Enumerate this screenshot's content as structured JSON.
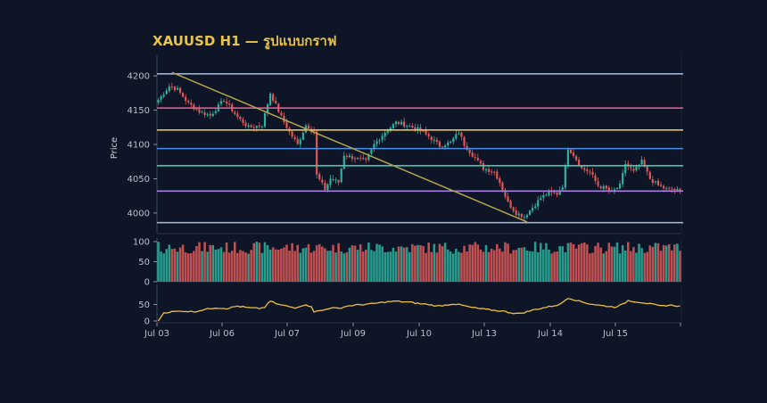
{
  "chart_data": {
    "type": "candlestick",
    "title": "XAUUSD H1 — รูปแบบกราฟ",
    "ylabel": "Price",
    "ylim": [
      3970,
      4230
    ],
    "yticks": [
      4000,
      4050,
      4100,
      4150,
      4200
    ],
    "x_ticks": [
      "Jul 03",
      "Jul 06",
      "Jul 07",
      "Jul 09",
      "Jul 10",
      "Jul 13",
      "Jul 14",
      "Jul 15"
    ],
    "grid": false,
    "colors": {
      "background": "#0d1526",
      "up": "#2bb5a0",
      "down": "#e05a5a",
      "title": "#e8c24a",
      "rsi_line": "#f0c040",
      "trendline": "#b5a550"
    },
    "price_path_knots": [
      [
        0,
        4165
      ],
      [
        4,
        4185
      ],
      [
        7,
        4180
      ],
      [
        11,
        4160
      ],
      [
        15,
        4148
      ],
      [
        19,
        4142
      ],
      [
        24,
        4165
      ],
      [
        29,
        4140
      ],
      [
        33,
        4125
      ],
      [
        38,
        4128
      ],
      [
        41,
        4175
      ],
      [
        45,
        4140
      ],
      [
        48,
        4118
      ],
      [
        51,
        4100
      ],
      [
        54,
        4128
      ],
      [
        57,
        4120
      ],
      [
        58,
        4055
      ],
      [
        61,
        4035
      ],
      [
        63,
        4050
      ],
      [
        66,
        4045
      ],
      [
        68,
        4085
      ],
      [
        72,
        4080
      ],
      [
        76,
        4075
      ],
      [
        79,
        4100
      ],
      [
        83,
        4118
      ],
      [
        87,
        4132
      ],
      [
        91,
        4128
      ],
      [
        95,
        4122
      ],
      [
        99,
        4112
      ],
      [
        103,
        4098
      ],
      [
        107,
        4103
      ],
      [
        110,
        4118
      ],
      [
        112,
        4100
      ],
      [
        116,
        4080
      ],
      [
        119,
        4065
      ],
      [
        123,
        4060
      ],
      [
        125,
        4045
      ],
      [
        128,
        4015
      ],
      [
        131,
        4000
      ],
      [
        134,
        3995
      ],
      [
        137,
        4008
      ],
      [
        140,
        4022
      ],
      [
        143,
        4030
      ],
      [
        146,
        4028
      ],
      [
        148,
        4040
      ],
      [
        150,
        4095
      ],
      [
        152,
        4085
      ],
      [
        155,
        4065
      ],
      [
        158,
        4060
      ],
      [
        161,
        4040
      ],
      [
        164,
        4035
      ],
      [
        166,
        4030
      ],
      [
        169,
        4040
      ],
      [
        171,
        4072
      ],
      [
        174,
        4060
      ],
      [
        177,
        4075
      ],
      [
        180,
        4050
      ],
      [
        183,
        4040
      ],
      [
        186,
        4035
      ],
      [
        189,
        4034
      ],
      [
        191,
        4032
      ]
    ],
    "horizontal_levels": [
      {
        "price": 4203,
        "color": "#9fb4d0"
      },
      {
        "price": 4153,
        "color": "#e55a8a"
      },
      {
        "price": 4121,
        "color": "#e8c24a"
      },
      {
        "price": 4094,
        "color": "#4a8ee8"
      },
      {
        "price": 4069,
        "color": "#3ec8b0"
      },
      {
        "price": 4032,
        "color": "#a77fe0"
      },
      {
        "price": 3986,
        "color": "#9fb4d0"
      }
    ],
    "trendline": {
      "start": {
        "x": 5,
        "price": 4205
      },
      "end": {
        "x": 135,
        "price": 3987
      }
    },
    "volume_panel": {
      "yticks": [
        0,
        50,
        100
      ],
      "ylim": [
        0,
        100
      ]
    },
    "rsi_panel": {
      "yticks": [
        0,
        50
      ],
      "ylim": [
        0,
        100
      ],
      "knots": [
        [
          0,
          0
        ],
        [
          2,
          25
        ],
        [
          5,
          28
        ],
        [
          9,
          30
        ],
        [
          13,
          28
        ],
        [
          17,
          35
        ],
        [
          21,
          40
        ],
        [
          25,
          38
        ],
        [
          29,
          45
        ],
        [
          33,
          40
        ],
        [
          37,
          38
        ],
        [
          39,
          42
        ],
        [
          41,
          60
        ],
        [
          44,
          50
        ],
        [
          47,
          45
        ],
        [
          50,
          40
        ],
        [
          53,
          48
        ],
        [
          56,
          45
        ],
        [
          57,
          28
        ],
        [
          60,
          32
        ],
        [
          63,
          40
        ],
        [
          66,
          38
        ],
        [
          69,
          45
        ],
        [
          72,
          48
        ],
        [
          75,
          50
        ],
        [
          78,
          52
        ],
        [
          81,
          55
        ],
        [
          84,
          58
        ],
        [
          87,
          60
        ],
        [
          90,
          58
        ],
        [
          93,
          56
        ],
        [
          96,
          52
        ],
        [
          99,
          50
        ],
        [
          102,
          45
        ],
        [
          105,
          48
        ],
        [
          108,
          52
        ],
        [
          111,
          48
        ],
        [
          114,
          42
        ],
        [
          117,
          38
        ],
        [
          120,
          35
        ],
        [
          123,
          32
        ],
        [
          126,
          30
        ],
        [
          129,
          25
        ],
        [
          132,
          22
        ],
        [
          135,
          28
        ],
        [
          138,
          35
        ],
        [
          141,
          40
        ],
        [
          144,
          45
        ],
        [
          147,
          50
        ],
        [
          150,
          70
        ],
        [
          152,
          65
        ],
        [
          155,
          58
        ],
        [
          158,
          52
        ],
        [
          161,
          48
        ],
        [
          164,
          45
        ],
        [
          167,
          42
        ],
        [
          170,
          50
        ],
        [
          172,
          62
        ],
        [
          175,
          58
        ],
        [
          178,
          55
        ],
        [
          181,
          50
        ],
        [
          184,
          45
        ],
        [
          187,
          48
        ],
        [
          191,
          45
        ]
      ]
    }
  }
}
